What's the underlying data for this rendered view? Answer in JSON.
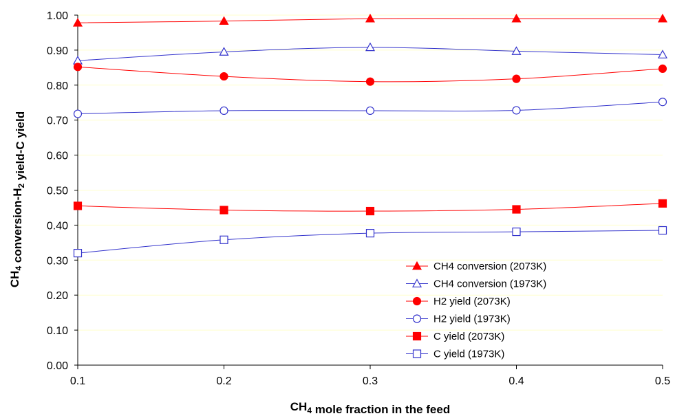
{
  "chart_data": {
    "type": "line",
    "title": "",
    "xlabel": "CH4 mole fraction in the feed",
    "ylabel": "CH4 conversion-H2 yield-C yield",
    "x": [
      0.1,
      0.2,
      0.3,
      0.4,
      0.5
    ],
    "x_ticks": [
      "0.1",
      "0.2",
      "0.3",
      "0.4",
      "0.5"
    ],
    "xlim": [
      0.1,
      0.5
    ],
    "ylim": [
      0.0,
      1.0
    ],
    "y_ticks": [
      "0.00",
      "0.10",
      "0.20",
      "0.30",
      "0.40",
      "0.50",
      "0.60",
      "0.70",
      "0.80",
      "0.90",
      "1.00"
    ],
    "grid": true,
    "legend_position": "bottom-right",
    "series": [
      {
        "name": "CH4 conversion (2073K)",
        "color": "#ff0000",
        "marker": "triangle-filled",
        "values": [
          0.978,
          0.983,
          0.99,
          0.99,
          0.99
        ]
      },
      {
        "name": "CH4 conversion (1973K)",
        "color": "#3333cc",
        "marker": "triangle-open",
        "values": [
          0.87,
          0.895,
          0.908,
          0.897,
          0.887
        ]
      },
      {
        "name": "H2 yield (2073K)",
        "color": "#ff0000",
        "marker": "circle-filled",
        "values": [
          0.852,
          0.825,
          0.81,
          0.818,
          0.847
        ]
      },
      {
        "name": "H2 yield (1973K)",
        "color": "#3333cc",
        "marker": "circle-open",
        "values": [
          0.718,
          0.727,
          0.727,
          0.728,
          0.752
        ]
      },
      {
        "name": "C yield (2073K)",
        "color": "#ff0000",
        "marker": "square-filled",
        "values": [
          0.455,
          0.443,
          0.44,
          0.445,
          0.462
        ]
      },
      {
        "name": "C yield (1973K)",
        "color": "#3333cc",
        "marker": "square-open",
        "values": [
          0.32,
          0.358,
          0.377,
          0.381,
          0.385
        ]
      }
    ]
  }
}
